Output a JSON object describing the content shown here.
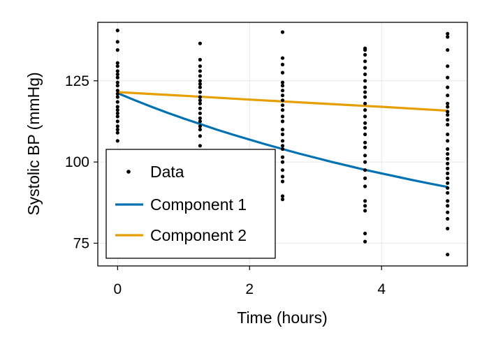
{
  "chart_data": {
    "type": "scatter",
    "title": "",
    "xlabel": "Time (hours)",
    "ylabel": "Systolic BP (mmHg)",
    "xlim": [
      -0.3,
      5.3
    ],
    "ylim": [
      68,
      143
    ],
    "x_ticks": [
      0,
      2,
      4
    ],
    "x_tick_labels": [
      "0",
      "2",
      "4"
    ],
    "y_ticks": [
      75,
      100,
      125
    ],
    "y_tick_labels": [
      "75",
      "100",
      "125"
    ],
    "grid": true,
    "legend_position": "bottom-left",
    "scatter": {
      "name": "Data",
      "color": "#000000",
      "points": [
        [
          0,
          140.5
        ],
        [
          0,
          137
        ],
        [
          0,
          134.5
        ],
        [
          0,
          130.5
        ],
        [
          0,
          129.5
        ],
        [
          0,
          128
        ],
        [
          0,
          127
        ],
        [
          0,
          126
        ],
        [
          0,
          124.5
        ],
        [
          0,
          123.5
        ],
        [
          0,
          122
        ],
        [
          0,
          121
        ],
        [
          0,
          120
        ],
        [
          0,
          118.5
        ],
        [
          0,
          117
        ],
        [
          0,
          116
        ],
        [
          0,
          115
        ],
        [
          0,
          114
        ],
        [
          0,
          112.5
        ],
        [
          0,
          111
        ],
        [
          0,
          110
        ],
        [
          0,
          109
        ],
        [
          0,
          106.5
        ],
        [
          1.25,
          136.5
        ],
        [
          1.25,
          131.5
        ],
        [
          1.25,
          129.5
        ],
        [
          1.25,
          128
        ],
        [
          1.25,
          126.5
        ],
        [
          1.25,
          125
        ],
        [
          1.25,
          124
        ],
        [
          1.25,
          123
        ],
        [
          1.25,
          121.5
        ],
        [
          1.25,
          120
        ],
        [
          1.25,
          119
        ],
        [
          1.25,
          118
        ],
        [
          1.25,
          116.5
        ],
        [
          1.25,
          115
        ],
        [
          1.25,
          113.5
        ],
        [
          1.25,
          112.5
        ],
        [
          1.25,
          111
        ],
        [
          1.25,
          110
        ],
        [
          1.25,
          108
        ],
        [
          1.25,
          105
        ],
        [
          2.5,
          140
        ],
        [
          2.5,
          132
        ],
        [
          2.5,
          130
        ],
        [
          2.5,
          127.5
        ],
        [
          2.5,
          124.5
        ],
        [
          2.5,
          123.5
        ],
        [
          2.5,
          122
        ],
        [
          2.5,
          120.5
        ],
        [
          2.5,
          119
        ],
        [
          2.5,
          117.5
        ],
        [
          2.5,
          116
        ],
        [
          2.5,
          114
        ],
        [
          2.5,
          112.5
        ],
        [
          2.5,
          110
        ],
        [
          2.5,
          108.5
        ],
        [
          2.5,
          106.5
        ],
        [
          2.5,
          105
        ],
        [
          2.5,
          104
        ],
        [
          2.5,
          101.5
        ],
        [
          2.5,
          100
        ],
        [
          2.5,
          97.5
        ],
        [
          2.5,
          95.5
        ],
        [
          2.5,
          94
        ],
        [
          2.5,
          89.5
        ],
        [
          2.5,
          88.5
        ],
        [
          3.75,
          135
        ],
        [
          3.75,
          134.5
        ],
        [
          3.75,
          133
        ],
        [
          3.75,
          131
        ],
        [
          3.75,
          129
        ],
        [
          3.75,
          127
        ],
        [
          3.75,
          125
        ],
        [
          3.75,
          123
        ],
        [
          3.75,
          121.5
        ],
        [
          3.75,
          120
        ],
        [
          3.75,
          118
        ],
        [
          3.75,
          116
        ],
        [
          3.75,
          114
        ],
        [
          3.75,
          112
        ],
        [
          3.75,
          110.5
        ],
        [
          3.75,
          108.5
        ],
        [
          3.75,
          106
        ],
        [
          3.75,
          104.5
        ],
        [
          3.75,
          102
        ],
        [
          3.75,
          100
        ],
        [
          3.75,
          97.5
        ],
        [
          3.75,
          95
        ],
        [
          3.75,
          92.5
        ],
        [
          3.75,
          88
        ],
        [
          3.75,
          86.5
        ],
        [
          3.75,
          85
        ],
        [
          3.75,
          78
        ],
        [
          3.75,
          75.5
        ],
        [
          5,
          139.5
        ],
        [
          5,
          138.5
        ],
        [
          5,
          134.5
        ],
        [
          5,
          129.5
        ],
        [
          5,
          126
        ],
        [
          5,
          123
        ],
        [
          5,
          120.5
        ],
        [
          5,
          118
        ],
        [
          5,
          117
        ],
        [
          5,
          115.5
        ],
        [
          5,
          114.5
        ],
        [
          5,
          113
        ],
        [
          5,
          111.5
        ],
        [
          5,
          108.5
        ],
        [
          5,
          106.5
        ],
        [
          5,
          104
        ],
        [
          5,
          102.5
        ],
        [
          5,
          101
        ],
        [
          5,
          99.5
        ],
        [
          5,
          98
        ],
        [
          5,
          96.5
        ],
        [
          5,
          95
        ],
        [
          5,
          93.5
        ],
        [
          5,
          92
        ],
        [
          5,
          90.5
        ],
        [
          5,
          88
        ],
        [
          5,
          86.5
        ],
        [
          5,
          84.5
        ],
        [
          5,
          82.5
        ],
        [
          5,
          79.5
        ],
        [
          5,
          71.5
        ]
      ]
    },
    "series": [
      {
        "name": "Component 1",
        "color": "#0072B2",
        "x": [
          0,
          0.25,
          0.5,
          0.75,
          1,
          1.25,
          1.5,
          1.75,
          2,
          2.25,
          2.5,
          2.75,
          3,
          3.25,
          3.5,
          3.75,
          4,
          4.25,
          4.5,
          4.75,
          5
        ],
        "values": [
          121.2,
          119.1,
          117.1,
          115.2,
          113.4,
          111.7,
          110.0,
          108.4,
          106.9,
          105.4,
          104.0,
          102.6,
          101.3,
          100.0,
          98.8,
          97.6,
          96.5,
          95.4,
          94.3,
          93.3,
          92.3
        ]
      },
      {
        "name": "Component 2",
        "color": "#E69F00",
        "x": [
          0,
          1,
          2,
          3,
          4,
          5
        ],
        "values": [
          121.5,
          120.4,
          119.2,
          118.1,
          117.0,
          115.8
        ]
      }
    ],
    "legend": [
      "Data",
      "Component 1",
      "Component 2"
    ]
  }
}
